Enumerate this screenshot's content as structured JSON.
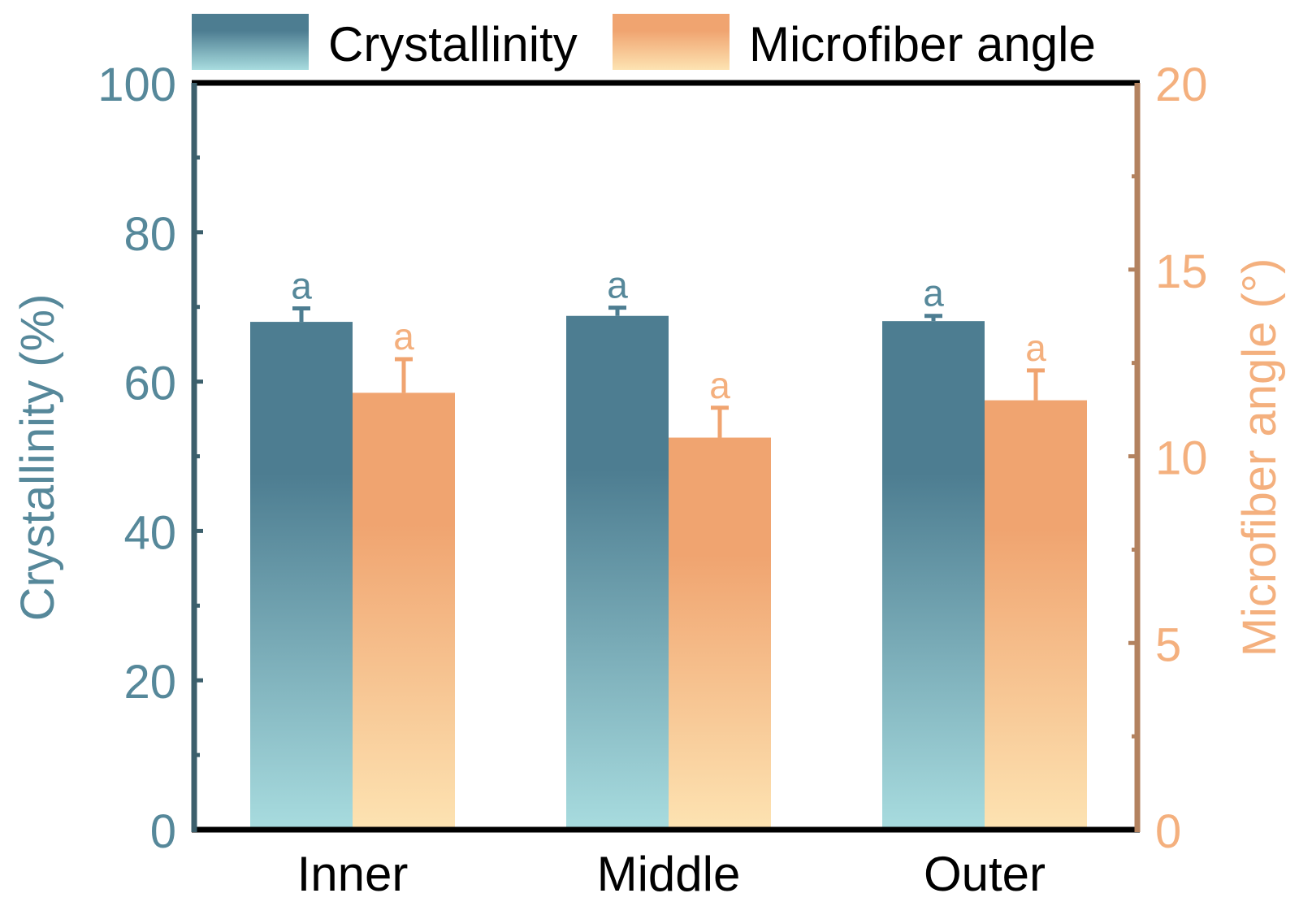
{
  "chart_data": {
    "type": "bar",
    "categories": [
      "Inner",
      "Middle",
      "Outer"
    ],
    "series": [
      {
        "name": "Crystallinity",
        "axis": "left",
        "values": [
          68,
          68.8,
          68.1
        ],
        "errors": [
          1.8,
          1.1,
          0.7
        ],
        "labels": [
          "a",
          "a",
          "a"
        ]
      },
      {
        "name": "Microfiber angle",
        "axis": "right",
        "values": [
          11.7,
          10.5,
          11.5
        ],
        "errors": [
          0.9,
          0.8,
          0.8
        ],
        "labels": [
          "a",
          "a",
          "a"
        ]
      }
    ],
    "y_left": {
      "label": "Crystallinity (%)",
      "lim": [
        0,
        100
      ],
      "ticks": [
        "0",
        "20",
        "40",
        "60",
        "80",
        "100"
      ]
    },
    "y_right": {
      "label": "Microfiber angle (°)",
      "lim": [
        0,
        20
      ],
      "ticks": [
        "0",
        "5",
        "10",
        "15",
        "20"
      ]
    },
    "legend": [
      "Crystallinity",
      "Microfiber angle"
    ],
    "legend_position": "top"
  },
  "colors": {
    "crystallinity_top": "#4d7d91",
    "crystallinity_bottom": "#a8dcdf",
    "microfiber_top": "#f0a470",
    "microfiber_bottom": "#fde3b2",
    "left_axis": "#3c5f6c",
    "left_text": "#56889a",
    "right_axis": "#b3825f",
    "right_text": "#f4b07e",
    "frame": "#000000"
  }
}
